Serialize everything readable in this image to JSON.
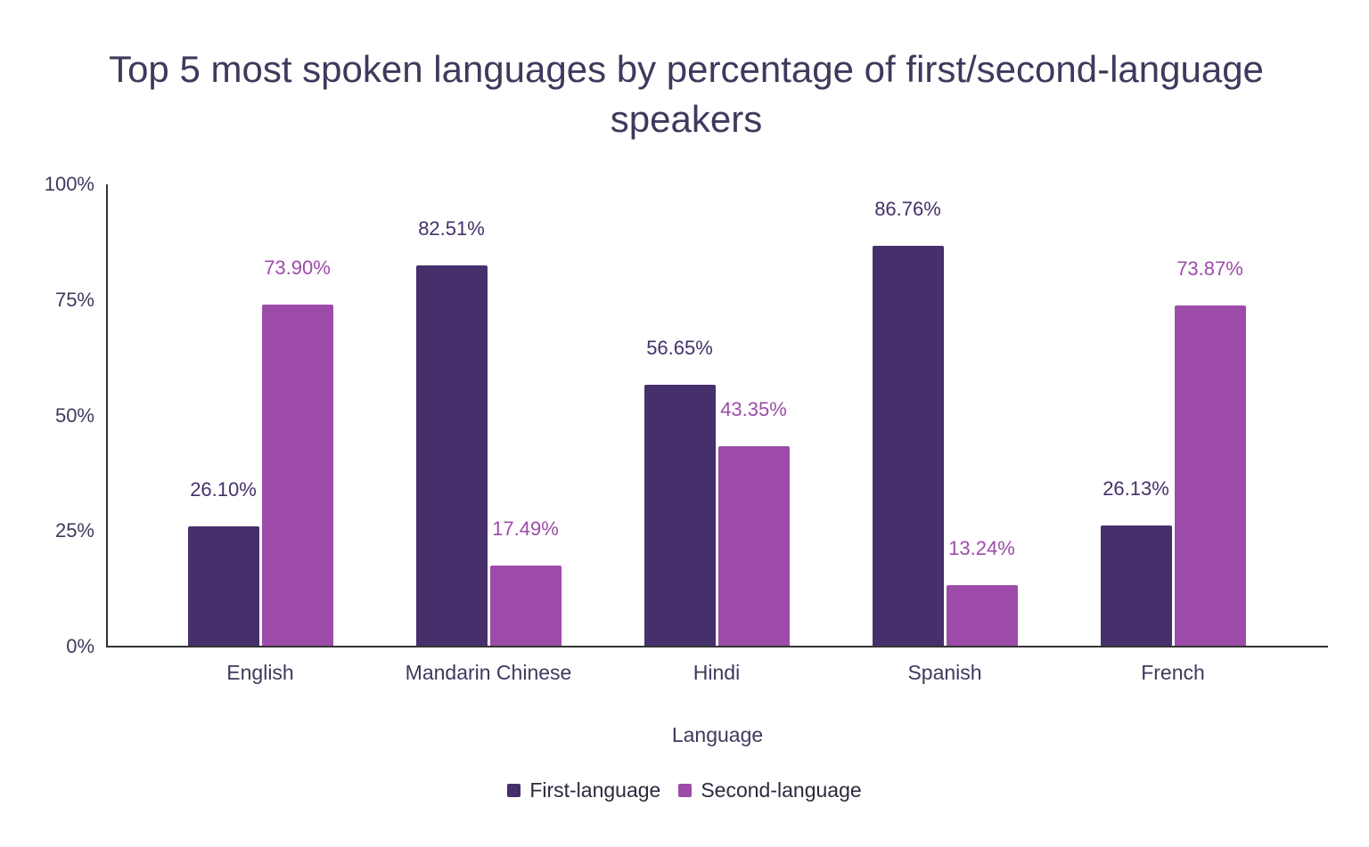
{
  "chart_data": {
    "type": "bar",
    "title": "Top 5 most spoken languages by percentage of first/second-language speakers",
    "xlabel": "Language",
    "ylabel": "",
    "ylim": [
      0,
      100
    ],
    "yticks": [
      "0%",
      "25%",
      "50%",
      "75%",
      "100%"
    ],
    "categories": [
      "English",
      "Mandarin Chinese",
      "Hindi",
      "Spanish",
      "French"
    ],
    "series": [
      {
        "name": "First-language",
        "color": "#45306b",
        "values": [
          26.1,
          82.51,
          56.65,
          86.76,
          26.13
        ],
        "labels": [
          "26.10%",
          "82.51%",
          "56.65%",
          "86.76%",
          "26.13%"
        ]
      },
      {
        "name": "Second-language",
        "color": "#9c4ca8",
        "values": [
          73.9,
          17.49,
          43.35,
          13.24,
          73.87
        ],
        "labels": [
          "73.90%",
          "17.49%",
          "43.35%",
          "13.24%",
          "73.87%"
        ]
      }
    ],
    "grid": false,
    "legend_position": "bottom"
  },
  "title_line1": "Top 5 most spoken languages by percentage of first/second-language",
  "title_line2": "speakers"
}
